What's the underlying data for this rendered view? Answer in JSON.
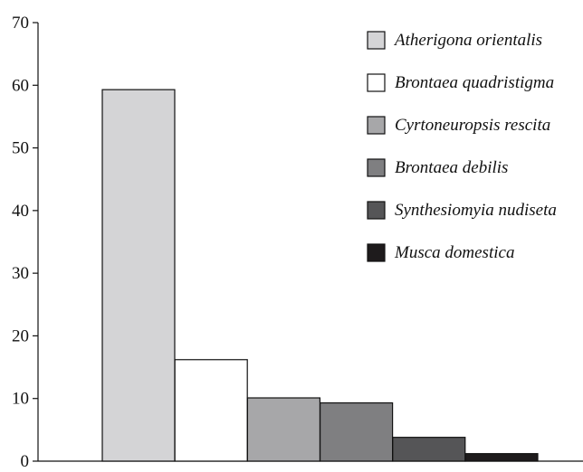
{
  "chart_data": {
    "type": "bar",
    "categories": [
      "Atherigona orientalis",
      "Brontaea quadristigma",
      "Cyrtoneuropsis rescita",
      "Brontaea debilis",
      "Synthesiomyia nudiseta",
      "Musca domestica"
    ],
    "values": [
      59.3,
      16.2,
      10.1,
      9.3,
      3.8,
      1.2
    ],
    "colors": [
      "#d4d4d6",
      "#ffffff",
      "#a7a7a9",
      "#7f7f81",
      "#555557",
      "#1e1b1c"
    ],
    "title": "",
    "xlabel": "",
    "ylabel": "",
    "ylim": [
      0,
      70
    ],
    "yticks": [
      0,
      10,
      20,
      30,
      40,
      50,
      60,
      70
    ],
    "grid": false,
    "legend": "top-right"
  }
}
